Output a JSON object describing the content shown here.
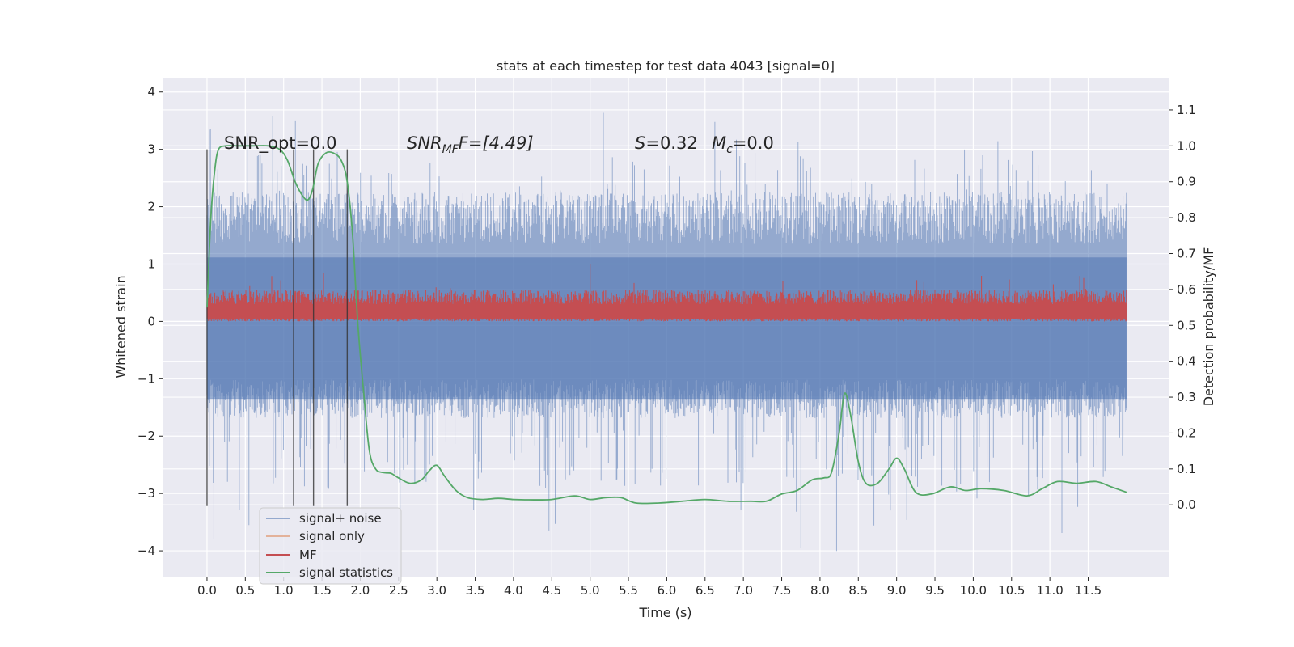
{
  "chart_data": {
    "type": "line",
    "title": "stats at each timestep for test data 4043 [signal=0]",
    "xlabel": "Time (s)",
    "ylabel": "Whitened strain",
    "y2label": "Detection probability/MF",
    "xlim": [
      -0.58,
      12.55
    ],
    "ylim": [
      -4.45,
      4.25
    ],
    "y2lim": [
      -0.2,
      1.19
    ],
    "x_ticks": [
      0.0,
      0.5,
      1.0,
      1.5,
      2.0,
      2.5,
      3.0,
      3.5,
      4.0,
      4.5,
      5.0,
      5.5,
      6.0,
      6.5,
      7.0,
      7.5,
      8.0,
      8.5,
      9.0,
      9.5,
      10.0,
      10.5,
      11.0,
      11.5
    ],
    "x_tick_labels": [
      "0.0",
      "0.5",
      "1.0",
      "1.5",
      "2.0",
      "2.5",
      "3.0",
      "3.5",
      "4.0",
      "4.5",
      "5.0",
      "5.5",
      "6.0",
      "6.5",
      "7.0",
      "7.5",
      "8.0",
      "8.5",
      "9.0",
      "9.5",
      "10.0",
      "10.5",
      "11.0",
      "11.5"
    ],
    "y_ticks": [
      4,
      3,
      2,
      1,
      0,
      -1,
      -2,
      -3,
      -4
    ],
    "y_tick_labels": [
      "4",
      "3",
      "2",
      "1",
      "0",
      "−1",
      "−2",
      "−3",
      "−4"
    ],
    "y2_ticks": [
      1.1,
      1.0,
      0.9,
      0.8,
      0.7,
      0.6,
      0.5,
      0.4,
      0.3,
      0.2,
      0.1,
      0.0
    ],
    "y2_tick_labels": [
      "1.1",
      "1.0",
      "0.9",
      "0.8",
      "0.7",
      "0.6",
      "0.5",
      "0.4",
      "0.3",
      "0.2",
      "0.1",
      "0.0"
    ],
    "grid": true,
    "legend_position": "lower-left",
    "legend": [
      "signal+ noise",
      "signal only",
      "MF",
      "signal statistics"
    ],
    "annotations": {
      "snr_opt": "SNR_opt=0.0",
      "snr_mf_main": "SNR",
      "snr_mf_sub": "MF",
      "snr_mf_rest": "F=[4.49]",
      "s_main": "S",
      "s_rest": "=0.32",
      "mc_main": "M",
      "mc_sub": "c",
      "mc_rest": "=0.0"
    },
    "vertical_markers": [
      0.0,
      1.13,
      1.39,
      1.83
    ],
    "series": [
      {
        "name": "signal+ noise",
        "axis": "left",
        "color": "#4c72b0",
        "x_range": [
          0.0,
          12.0
        ],
        "typical_range": [
          -1.35,
          1.8
        ],
        "extreme_range": [
          -4.1,
          3.85
        ]
      },
      {
        "name": "signal only",
        "axis": "left",
        "color": "#dd8452",
        "values_constant": 0.0
      },
      {
        "name": "MF",
        "axis": "left",
        "color": "#c44e52",
        "x_range": [
          0.0,
          12.0
        ],
        "typical_range": [
          0.0,
          0.55
        ],
        "peak": 1.0
      },
      {
        "name": "signal statistics",
        "axis": "right",
        "color": "#55a868",
        "x": [
          0.0,
          0.05,
          0.1,
          0.15,
          0.25,
          0.4,
          0.6,
          0.8,
          0.95,
          1.05,
          1.15,
          1.25,
          1.32,
          1.38,
          1.45,
          1.55,
          1.65,
          1.75,
          1.83,
          1.9,
          1.97,
          2.05,
          2.12,
          2.2,
          2.3,
          2.4,
          2.5,
          2.65,
          2.8,
          2.9,
          3.0,
          3.1,
          3.25,
          3.4,
          3.6,
          3.8,
          4.0,
          4.2,
          4.5,
          4.8,
          5.0,
          5.2,
          5.4,
          5.6,
          5.9,
          6.2,
          6.5,
          6.8,
          7.1,
          7.3,
          7.5,
          7.7,
          7.9,
          8.05,
          8.15,
          8.25,
          8.32,
          8.4,
          8.5,
          8.6,
          8.75,
          8.9,
          9.0,
          9.1,
          9.25,
          9.45,
          9.7,
          9.9,
          10.1,
          10.4,
          10.7,
          10.9,
          11.1,
          11.35,
          11.6,
          11.8,
          12.0
        ],
        "y": [
          0.55,
          0.8,
          0.93,
          0.99,
          1.0,
          1.0,
          1.0,
          1.0,
          0.99,
          0.96,
          0.9,
          0.86,
          0.85,
          0.88,
          0.95,
          0.98,
          0.98,
          0.96,
          0.9,
          0.75,
          0.5,
          0.3,
          0.15,
          0.1,
          0.09,
          0.088,
          0.075,
          0.06,
          0.07,
          0.095,
          0.11,
          0.08,
          0.04,
          0.02,
          0.015,
          0.018,
          0.015,
          0.014,
          0.015,
          0.025,
          0.015,
          0.02,
          0.02,
          0.005,
          0.005,
          0.01,
          0.015,
          0.01,
          0.01,
          0.01,
          0.03,
          0.04,
          0.07,
          0.075,
          0.09,
          0.2,
          0.31,
          0.25,
          0.12,
          0.06,
          0.06,
          0.1,
          0.13,
          0.1,
          0.035,
          0.03,
          0.05,
          0.04,
          0.045,
          0.04,
          0.025,
          0.045,
          0.065,
          0.06,
          0.065,
          0.05,
          0.035
        ]
      }
    ]
  }
}
